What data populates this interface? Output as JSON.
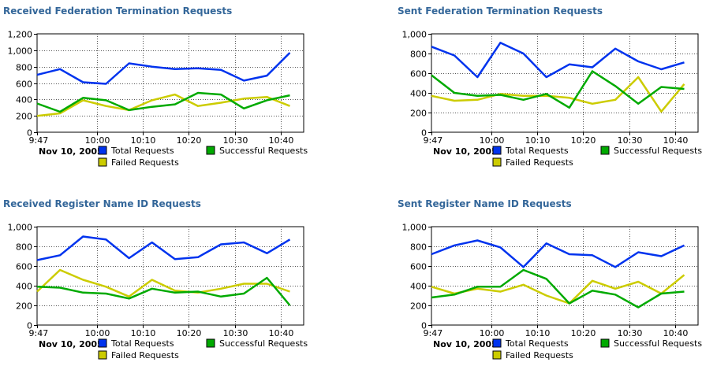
{
  "chart_data": [
    {
      "type": "line",
      "title": "Received Federation Termination Requests",
      "date_label": "Nov 10, 2005",
      "x_ticks": [
        "9:47",
        "10:00",
        "10:10",
        "10:20",
        "10:30",
        "10:40"
      ],
      "y_ticks": [
        "0",
        "200",
        "400",
        "600",
        "800",
        "1,000",
        "1,200"
      ],
      "ylim": [
        0,
        1200
      ],
      "xlim": [
        "9:47",
        "10:45"
      ],
      "grid": true,
      "legend_position": "bottom",
      "x": [
        "9:47",
        "9:52",
        "9:57",
        "10:02",
        "10:07",
        "10:12",
        "10:17",
        "10:22",
        "10:27",
        "10:32",
        "10:37",
        "10:42"
      ],
      "series": [
        {
          "name": "Total Requests",
          "color": "#0033ee",
          "values": [
            700,
            770,
            610,
            590,
            840,
            800,
            770,
            780,
            760,
            630,
            690,
            970
          ]
        },
        {
          "name": "Successful Requests",
          "color": "#00aa00",
          "values": [
            350,
            250,
            420,
            390,
            270,
            310,
            340,
            480,
            460,
            290,
            390,
            450
          ]
        },
        {
          "name": "Failed Requests",
          "color": "#cccc00",
          "values": [
            200,
            230,
            390,
            320,
            270,
            390,
            460,
            320,
            360,
            410,
            430,
            320
          ]
        }
      ]
    },
    {
      "type": "line",
      "title": "Sent Federation Termination Requests",
      "date_label": "Nov 10, 2005",
      "x_ticks": [
        "9:47",
        "10:00",
        "10:10",
        "10:20",
        "10:30",
        "10:40"
      ],
      "y_ticks": [
        "0",
        "200",
        "400",
        "600",
        "800",
        "1,000"
      ],
      "ylim": [
        0,
        1000
      ],
      "xlim": [
        "9:47",
        "10:45"
      ],
      "grid": true,
      "legend_position": "bottom",
      "x": [
        "9:47",
        "9:52",
        "9:57",
        "10:02",
        "10:07",
        "10:12",
        "10:17",
        "10:22",
        "10:27",
        "10:32",
        "10:37",
        "10:42"
      ],
      "series": [
        {
          "name": "Total Requests",
          "color": "#0033ee",
          "values": [
            870,
            780,
            560,
            910,
            800,
            560,
            690,
            660,
            850,
            720,
            640,
            710
          ]
        },
        {
          "name": "Successful Requests",
          "color": "#00aa00",
          "values": [
            580,
            400,
            370,
            380,
            330,
            390,
            250,
            620,
            470,
            290,
            460,
            440
          ]
        },
        {
          "name": "Failed Requests",
          "color": "#cccc00",
          "values": [
            370,
            320,
            330,
            390,
            370,
            370,
            350,
            290,
            330,
            560,
            210,
            490
          ]
        }
      ]
    },
    {
      "type": "line",
      "title": "Received Register Name ID Requests",
      "date_label": "Nov 10, 2005",
      "x_ticks": [
        "9:47",
        "10:00",
        "10:10",
        "10:20",
        "10:30",
        "10:40"
      ],
      "y_ticks": [
        "0",
        "200",
        "400",
        "600",
        "800",
        "1,000"
      ],
      "ylim": [
        0,
        1000
      ],
      "xlim": [
        "9:47",
        "10:45"
      ],
      "grid": true,
      "legend_position": "bottom",
      "x": [
        "9:47",
        "9:52",
        "9:57",
        "10:02",
        "10:07",
        "10:12",
        "10:17",
        "10:22",
        "10:27",
        "10:32",
        "10:37",
        "10:42"
      ],
      "series": [
        {
          "name": "Total Requests",
          "color": "#0033ee",
          "values": [
            660,
            710,
            900,
            870,
            680,
            840,
            670,
            690,
            820,
            840,
            730,
            870
          ]
        },
        {
          "name": "Successful Requests",
          "color": "#00aa00",
          "values": [
            390,
            380,
            330,
            320,
            270,
            370,
            330,
            340,
            290,
            320,
            480,
            200
          ]
        },
        {
          "name": "Failed Requests",
          "color": "#cccc00",
          "values": [
            340,
            560,
            460,
            390,
            290,
            460,
            350,
            330,
            370,
            420,
            420,
            340
          ]
        }
      ]
    },
    {
      "type": "line",
      "title": "Sent Register Name ID Requests",
      "date_label": "Nov 10, 2005",
      "x_ticks": [
        "9:47",
        "10:00",
        "10:10",
        "10:20",
        "10:30",
        "10:40"
      ],
      "y_ticks": [
        "0",
        "200",
        "400",
        "600",
        "800",
        "1,000"
      ],
      "ylim": [
        0,
        1000
      ],
      "xlim": [
        "9:47",
        "10:45"
      ],
      "grid": true,
      "legend_position": "bottom",
      "x": [
        "9:47",
        "9:52",
        "9:57",
        "10:02",
        "10:07",
        "10:12",
        "10:17",
        "10:22",
        "10:27",
        "10:32",
        "10:37",
        "10:42"
      ],
      "series": [
        {
          "name": "Total Requests",
          "color": "#0033ee",
          "values": [
            720,
            810,
            860,
            790,
            590,
            830,
            720,
            710,
            590,
            740,
            700,
            810
          ]
        },
        {
          "name": "Successful Requests",
          "color": "#00aa00",
          "values": [
            280,
            310,
            390,
            390,
            560,
            470,
            220,
            350,
            310,
            180,
            320,
            340
          ]
        },
        {
          "name": "Failed Requests",
          "color": "#cccc00",
          "values": [
            390,
            320,
            370,
            340,
            410,
            300,
            220,
            450,
            370,
            440,
            320,
            510
          ]
        }
      ]
    }
  ]
}
